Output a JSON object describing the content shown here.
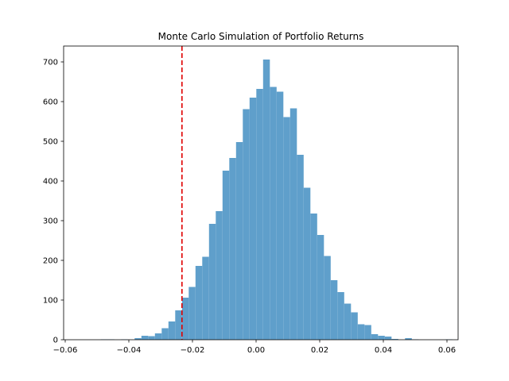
{
  "chart_data": {
    "type": "bar",
    "title": "Monte Carlo Simulation of Portfolio Returns",
    "xlabel": "",
    "ylabel": "",
    "xlim": [
      -0.0605,
      0.0635
    ],
    "ylim": [
      0,
      740
    ],
    "x_ticks": [
      -0.06,
      -0.04,
      -0.02,
      0.0,
      0.02,
      0.04,
      0.06
    ],
    "x_tick_labels": [
      "−0.06",
      "−0.04",
      "−0.02",
      "0.00",
      "0.02",
      "0.04",
      "0.06"
    ],
    "y_ticks": [
      0,
      100,
      200,
      300,
      400,
      500,
      600,
      700
    ],
    "y_tick_labels": [
      "0",
      "100",
      "200",
      "300",
      "400",
      "500",
      "600",
      "700"
    ],
    "bar_color": "#5f9fcb",
    "bins": {
      "start": -0.0488,
      "width": 0.002125,
      "counts": [
        1,
        1,
        0,
        1,
        0,
        4,
        10,
        9,
        16,
        29,
        46,
        74,
        106,
        133,
        186,
        209,
        292,
        324,
        426,
        458,
        498,
        581,
        610,
        632,
        706,
        637,
        625,
        561,
        583,
        466,
        383,
        318,
        264,
        211,
        150,
        120,
        91,
        69,
        39,
        37,
        14,
        10,
        8,
        2,
        0,
        4,
        1,
        0,
        0,
        0,
        0,
        1
      ]
    },
    "reference_line": {
      "x": -0.0233,
      "color": "#e00000",
      "style": "dashed"
    },
    "grid": false,
    "legend": "none"
  }
}
